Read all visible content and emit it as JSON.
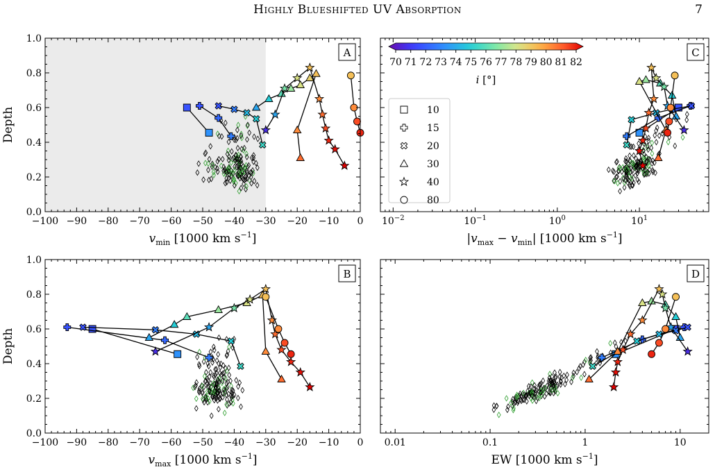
{
  "header": {
    "title": "Highly Blueshifted UV Absorption",
    "page_number": "7"
  },
  "colors": {
    "shade": "#ebebeb",
    "open_marker": "#000000",
    "green_marker": "#2e9e2e"
  },
  "colorbar": {
    "label_html": "i [°]",
    "ticks": [
      "70",
      "71",
      "72",
      "73",
      "74",
      "75",
      "76",
      "77",
      "78",
      "79",
      "80",
      "81",
      "82"
    ],
    "vmin": 70,
    "vmax": 82
  },
  "legend": [
    {
      "symbol": "square",
      "label": "10"
    },
    {
      "symbol": "plus",
      "label": "15"
    },
    {
      "symbol": "x",
      "label": "20"
    },
    {
      "symbol": "triangle",
      "label": "30"
    },
    {
      "symbol": "star",
      "label": "40"
    },
    {
      "symbol": "circle",
      "label": "80"
    }
  ],
  "chart_data": [
    {
      "panel": "A",
      "type": "scatter",
      "xscale": "linear",
      "xlabel": "v_min [1000 km s^-1]",
      "ylabel": "Depth",
      "xlim": [
        -100,
        0
      ],
      "ylim": [
        0,
        1.0
      ],
      "xticks": [
        "−100",
        "−90",
        "−80",
        "−70",
        "−60",
        "−50",
        "−40",
        "−30",
        "−20",
        "−10",
        "0"
      ],
      "yticks": [
        "0.0",
        "0.2",
        "0.4",
        "0.6",
        "0.8",
        "1.0"
      ],
      "shaded_region": [
        -100,
        -30
      ],
      "series": [
        {
          "name": "10",
          "marker": "square",
          "points": [
            [
              -55,
              0.6,
              72
            ],
            [
              -48,
              0.455,
              73.5
            ]
          ]
        },
        {
          "name": "15",
          "marker": "plus",
          "points": [
            [
              -51,
              0.61,
              72
            ],
            [
              -45,
              0.54,
              72.5
            ],
            [
              -41,
              0.435,
              73
            ]
          ]
        },
        {
          "name": "20",
          "marker": "x",
          "points": [
            [
              -45,
              0.61,
              72
            ],
            [
              -40,
              0.59,
              73
            ],
            [
              -36,
              0.57,
              74.5
            ],
            [
              -33,
              0.535,
              75
            ],
            [
              -31,
              0.385,
              75.5
            ]
          ]
        },
        {
          "name": "30",
          "marker": "triangle",
          "points": [
            [
              -33,
              0.6,
              74
            ],
            [
              -29,
              0.65,
              75
            ],
            [
              -25,
              0.68,
              76
            ],
            [
              -22,
              0.71,
              77
            ],
            [
              -19,
              0.73,
              78
            ],
            [
              -16,
              0.77,
              78.5
            ],
            [
              -14,
              0.795,
              79
            ],
            [
              -20,
              0.47,
              80
            ],
            [
              -19,
              0.31,
              80.5
            ]
          ]
        },
        {
          "name": "40",
          "marker": "star",
          "points": [
            [
              -30,
              0.47,
              71
            ],
            [
              -27,
              0.56,
              74
            ],
            [
              -24,
              0.71,
              76.5
            ],
            [
              -20,
              0.77,
              78
            ],
            [
              -16,
              0.83,
              79
            ],
            [
              -13,
              0.65,
              80
            ],
            [
              -12,
              0.56,
              80.5
            ],
            [
              -11,
              0.48,
              81
            ],
            [
              -10,
              0.41,
              81.5
            ],
            [
              -8,
              0.36,
              81.8
            ],
            [
              -5,
              0.265,
              82
            ]
          ]
        },
        {
          "name": "80",
          "marker": "circle",
          "points": [
            [
              -3,
              0.785,
              79
            ],
            [
              -2,
              0.6,
              80
            ],
            [
              -1,
              0.52,
              81
            ],
            [
              0,
              0.455,
              81.5
            ]
          ]
        }
      ]
    },
    {
      "panel": "B",
      "type": "scatter",
      "xscale": "linear",
      "xlabel": "v_max [1000 km s^-1]",
      "ylabel": "Depth",
      "xlim": [
        -100,
        0
      ],
      "ylim": [
        0,
        1.0
      ],
      "xticks": [
        "−100",
        "−90",
        "−80",
        "−70",
        "−60",
        "−50",
        "−40",
        "−30",
        "−20",
        "−10",
        "0"
      ],
      "yticks": [
        "0.0",
        "0.2",
        "0.4",
        "0.6",
        "0.8",
        "1.0"
      ],
      "series": [
        {
          "name": "10",
          "marker": "square",
          "points": [
            [
              -85,
              0.6,
              72
            ],
            [
              -58,
              0.455,
              73.5
            ]
          ]
        },
        {
          "name": "15",
          "marker": "plus",
          "points": [
            [
              -93,
              0.61,
              72
            ],
            [
              -62,
              0.535,
              72.5
            ],
            [
              -48,
              0.435,
              73
            ]
          ]
        },
        {
          "name": "20",
          "marker": "x",
          "points": [
            [
              -88,
              0.61,
              72
            ],
            [
              -65,
              0.595,
              73
            ],
            [
              -52,
              0.57,
              74.5
            ],
            [
              -41,
              0.53,
              75
            ],
            [
              -38,
              0.385,
              75.5
            ]
          ]
        },
        {
          "name": "30",
          "marker": "triangle",
          "points": [
            [
              -67,
              0.55,
              74
            ],
            [
              -59,
              0.625,
              75
            ],
            [
              -55,
              0.67,
              76
            ],
            [
              -45,
              0.71,
              77
            ],
            [
              -36,
              0.75,
              78
            ],
            [
              -31,
              0.795,
              79
            ],
            [
              -30,
              0.47,
              80
            ],
            [
              -25,
              0.31,
              80.5
            ]
          ]
        },
        {
          "name": "40",
          "marker": "star",
          "points": [
            [
              -65,
              0.47,
              71
            ],
            [
              -48,
              0.61,
              74
            ],
            [
              -40,
              0.72,
              76.5
            ],
            [
              -35,
              0.77,
              78
            ],
            [
              -30,
              0.83,
              79
            ],
            [
              -28,
              0.65,
              80
            ],
            [
              -27,
              0.57,
              80.5
            ],
            [
              -25,
              0.48,
              81
            ],
            [
              -22,
              0.41,
              81.5
            ],
            [
              -19,
              0.35,
              81.8
            ],
            [
              -16,
              0.265,
              82
            ]
          ]
        },
        {
          "name": "80",
          "marker": "circle",
          "points": [
            [
              -30,
              0.785,
              79
            ],
            [
              -26,
              0.6,
              80
            ],
            [
              -24,
              0.52,
              81
            ],
            [
              -22,
              0.455,
              81.5
            ]
          ]
        }
      ]
    },
    {
      "panel": "C",
      "type": "scatter",
      "xscale": "log",
      "xlabel": "|v_max − v_min| [1000 km s^-1]",
      "ylabel": "",
      "xlim": [
        0.007,
        70
      ],
      "ylim": [
        0,
        1.0
      ],
      "xticks": [
        {
          "value": 0.01,
          "label": "10^-2"
        },
        {
          "value": 0.1,
          "label": "10^-1"
        },
        {
          "value": 1,
          "label": "10^0"
        },
        {
          "value": 10,
          "label": "10^1"
        }
      ],
      "series": [
        {
          "name": "10",
          "marker": "square",
          "points": [
            [
              30,
              0.6,
              72
            ],
            [
              10,
              0.455,
              73.5
            ]
          ]
        },
        {
          "name": "15",
          "marker": "plus",
          "points": [
            [
              42,
              0.61,
              72
            ],
            [
              17,
              0.54,
              72.5
            ],
            [
              7,
              0.435,
              73
            ]
          ]
        },
        {
          "name": "20",
          "marker": "x",
          "points": [
            [
              43,
              0.61,
              72
            ],
            [
              25,
              0.59,
              73
            ],
            [
              16,
              0.57,
              74.5
            ],
            [
              8,
              0.53,
              75
            ],
            [
              7,
              0.385,
              75.5
            ]
          ]
        },
        {
          "name": "30",
          "marker": "triangle",
          "points": [
            [
              28,
              0.55,
              74
            ],
            [
              25,
              0.67,
              75
            ],
            [
              18,
              0.74,
              76
            ],
            [
              12,
              0.76,
              77
            ],
            [
              10,
              0.75,
              78
            ],
            [
              21,
              0.47,
              80
            ],
            [
              17,
              0.31,
              80.5
            ]
          ]
        },
        {
          "name": "40",
          "marker": "star",
          "points": [
            [
              35,
              0.47,
              71
            ],
            [
              22,
              0.61,
              74
            ],
            [
              20,
              0.72,
              76.5
            ],
            [
              16,
              0.77,
              78
            ],
            [
              14,
              0.83,
              79
            ],
            [
              15,
              0.65,
              80
            ],
            [
              13,
              0.57,
              80.5
            ],
            [
              12,
              0.48,
              81
            ],
            [
              11,
              0.41,
              81.5
            ],
            [
              10,
              0.35,
              81.8
            ],
            [
              11,
              0.265,
              82
            ]
          ]
        },
        {
          "name": "80",
          "marker": "circle",
          "points": [
            [
              27,
              0.785,
              79
            ],
            [
              24,
              0.6,
              80
            ],
            [
              23,
              0.52,
              81
            ],
            [
              22,
              0.455,
              81.5
            ]
          ]
        }
      ]
    },
    {
      "panel": "D",
      "type": "scatter",
      "xscale": "log",
      "xlabel": "EW [1000 km s^-1]",
      "ylabel": "",
      "xlim": [
        0.007,
        20
      ],
      "ylim": [
        0,
        1.0
      ],
      "xticks": [
        {
          "value": 0.01,
          "label": "0.01"
        },
        {
          "value": 0.1,
          "label": "0.1"
        },
        {
          "value": 1,
          "label": "1"
        },
        {
          "value": 10,
          "label": "10"
        }
      ],
      "series": [
        {
          "name": "10",
          "marker": "square",
          "points": [
            [
              9,
              0.6,
              72
            ],
            [
              2.1,
              0.455,
              73.5
            ]
          ]
        },
        {
          "name": "15",
          "marker": "plus",
          "points": [
            [
              11,
              0.61,
              72
            ],
            [
              4,
              0.54,
              72.5
            ],
            [
              1.5,
              0.435,
              73
            ]
          ]
        },
        {
          "name": "20",
          "marker": "x",
          "points": [
            [
              12,
              0.61,
              72
            ],
            [
              9,
              0.59,
              73
            ],
            [
              6,
              0.57,
              74.5
            ],
            [
              3.5,
              0.53,
              75
            ],
            [
              1.2,
              0.385,
              75.5
            ]
          ]
        },
        {
          "name": "30",
          "marker": "triangle",
          "points": [
            [
              10,
              0.55,
              74
            ],
            [
              9,
              0.67,
              75
            ],
            [
              7,
              0.74,
              76
            ],
            [
              5,
              0.76,
              77
            ],
            [
              4,
              0.75,
              78
            ],
            [
              2.2,
              0.47,
              80
            ],
            [
              1.1,
              0.31,
              80.5
            ]
          ]
        },
        {
          "name": "40",
          "marker": "star",
          "points": [
            [
              12,
              0.47,
              71
            ],
            [
              8,
              0.61,
              74
            ],
            [
              7,
              0.72,
              76.5
            ],
            [
              6.5,
              0.8,
              78
            ],
            [
              6,
              0.83,
              79
            ],
            [
              4,
              0.65,
              80
            ],
            [
              3,
              0.57,
              80.5
            ],
            [
              2.5,
              0.48,
              81
            ],
            [
              2.2,
              0.41,
              81.5
            ],
            [
              2.1,
              0.35,
              81.8
            ],
            [
              2,
              0.265,
              82
            ]
          ]
        },
        {
          "name": "80",
          "marker": "circle",
          "points": [
            [
              9,
              0.785,
              79
            ],
            [
              7,
              0.6,
              80
            ],
            [
              6,
              0.52,
              81
            ],
            [
              5,
              0.455,
              81.5
            ]
          ]
        }
      ]
    }
  ]
}
